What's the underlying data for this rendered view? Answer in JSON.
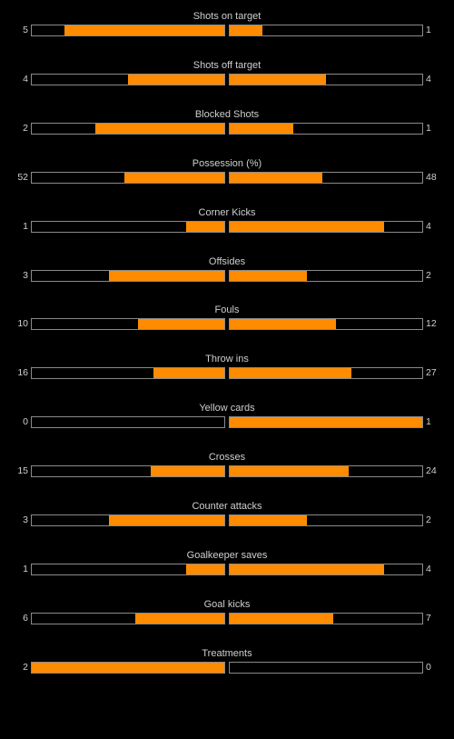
{
  "colors": {
    "background": "#000000",
    "bar_fill": "#ff8c00",
    "bar_border": "#8a8a8a",
    "text": "#cfcfcf"
  },
  "stats": [
    {
      "label": "Shots on target",
      "home": "5",
      "away": "1",
      "home_fill": 0.83,
      "away_fill": 0.17
    },
    {
      "label": "Shots off target",
      "home": "4",
      "away": "4",
      "home_fill": 0.5,
      "away_fill": 0.5
    },
    {
      "label": "Blocked Shots",
      "home": "2",
      "away": "1",
      "home_fill": 0.67,
      "away_fill": 0.33
    },
    {
      "label": "Possession (%)",
      "home": "52",
      "away": "48",
      "home_fill": 0.52,
      "away_fill": 0.48
    },
    {
      "label": "Corner Kicks",
      "home": "1",
      "away": "4",
      "home_fill": 0.2,
      "away_fill": 0.8
    },
    {
      "label": "Offsides",
      "home": "3",
      "away": "2",
      "home_fill": 0.6,
      "away_fill": 0.4
    },
    {
      "label": "Fouls",
      "home": "10",
      "away": "12",
      "home_fill": 0.45,
      "away_fill": 0.55
    },
    {
      "label": "Throw ins",
      "home": "16",
      "away": "27",
      "home_fill": 0.37,
      "away_fill": 0.63
    },
    {
      "label": "Yellow cards",
      "home": "0",
      "away": "1",
      "home_fill": 0.0,
      "away_fill": 1.0
    },
    {
      "label": "Crosses",
      "home": "15",
      "away": "24",
      "home_fill": 0.38,
      "away_fill": 0.62
    },
    {
      "label": "Counter attacks",
      "home": "3",
      "away": "2",
      "home_fill": 0.6,
      "away_fill": 0.4
    },
    {
      "label": "Goalkeeper saves",
      "home": "1",
      "away": "4",
      "home_fill": 0.2,
      "away_fill": 0.8
    },
    {
      "label": "Goal kicks",
      "home": "6",
      "away": "7",
      "home_fill": 0.46,
      "away_fill": 0.54
    },
    {
      "label": "Treatments",
      "home": "2",
      "away": "0",
      "home_fill": 1.0,
      "away_fill": 0.0
    }
  ]
}
